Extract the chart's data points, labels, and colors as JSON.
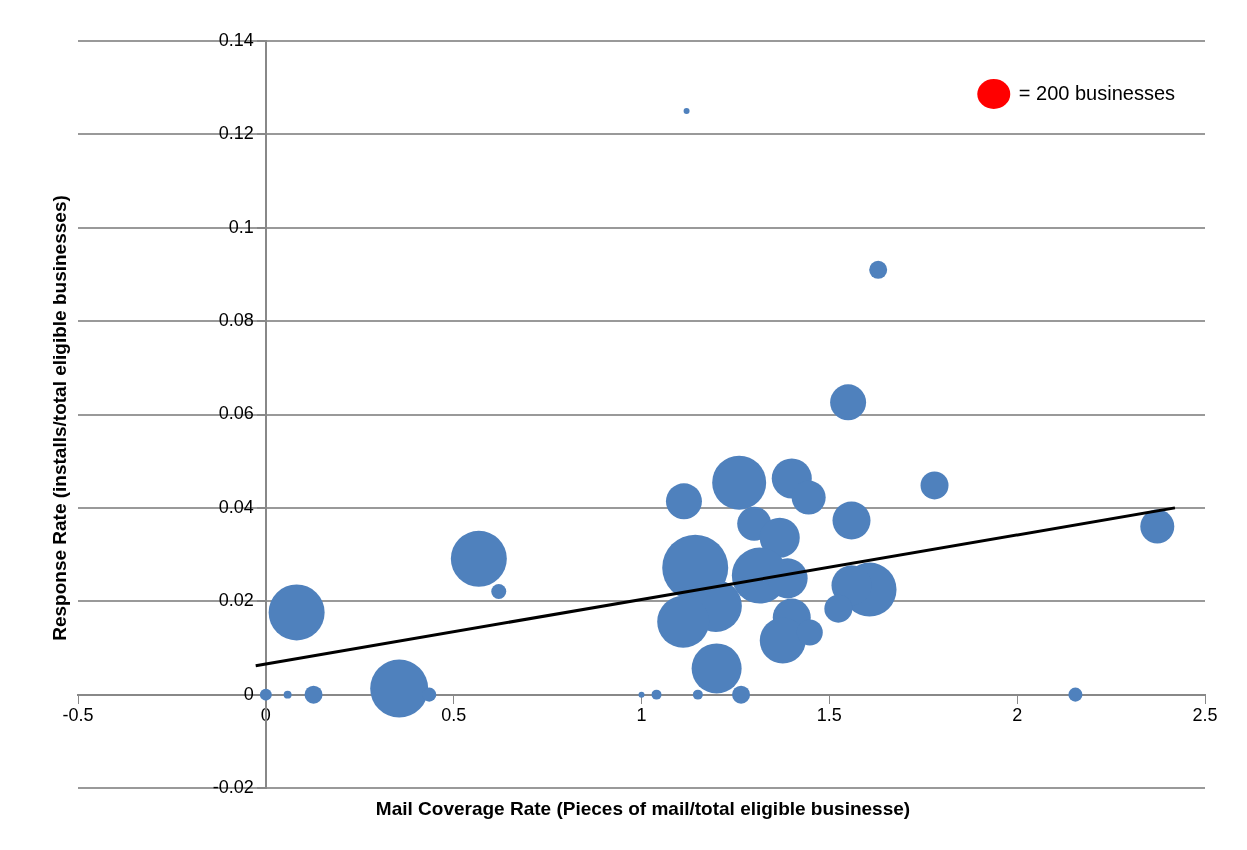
{
  "chart_data": {
    "type": "bubble",
    "xlabel": "Mail Coverage Rate (Pieces of mail/total eligible businesse)",
    "ylabel": "Response Rate (installs/total eligible businesses)",
    "xlim": [
      -0.5,
      2.5
    ],
    "xticks": [
      -0.5,
      0,
      0.5,
      1,
      1.5,
      2,
      2.5
    ],
    "ylim": [
      -0.02,
      0.14
    ],
    "yticks": [
      -0.02,
      0,
      0.02,
      0.04,
      0.06,
      0.08,
      0.1,
      0.12,
      0.14
    ],
    "grid": "y",
    "legend": false,
    "size_legend": [
      {
        "value": 200,
        "label": "= 200 businesses"
      }
    ],
    "series": [
      {
        "color": "#4f81bd",
        "x": [
          1.12,
          1.63,
          1.55,
          1.26,
          1.4,
          1.445,
          1.113,
          1.78,
          1.3,
          1.368,
          1.559,
          1.143,
          1.198,
          1.315,
          1.389,
          1.111,
          1.4,
          1.376,
          1.448,
          1.2,
          1.607,
          1.559,
          1.524,
          0.082,
          0.567,
          0.62,
          0.355,
          0.435,
          0,
          0.058,
          0.127,
          1.0,
          1.04,
          1.15,
          1.265,
          2.155,
          2.373
        ],
        "values": [
          0.125,
          0.091,
          0.0626,
          0.0454,
          0.0463,
          0.0422,
          0.0414,
          0.0448,
          0.0366,
          0.0336,
          0.0373,
          0.0272,
          0.019,
          0.0255,
          0.0249,
          0.0156,
          0.0165,
          0.0116,
          0.0133,
          0.0056,
          0.0225,
          0.0234,
          0.0184,
          0.0176,
          0.0291,
          0.0221,
          0.0013,
          0,
          0,
          0,
          0,
          0,
          0,
          0,
          0,
          0,
          0.036
        ],
        "sizes": [
          8,
          72,
          288,
          648,
          356,
          257,
          288,
          174,
          257,
          356,
          321,
          968,
          600,
          697,
          356,
          600,
          321,
          470,
          150,
          556,
          648,
          356,
          174,
          697,
          697,
          50,
          748,
          44,
          32,
          14,
          72,
          8,
          22,
          22,
          72,
          44,
          257
        ]
      },
      {
        "type": "line",
        "color": "#000000",
        "x": [
          -0.027,
          2.42
        ],
        "values": [
          0.0062,
          0.04
        ]
      }
    ]
  }
}
